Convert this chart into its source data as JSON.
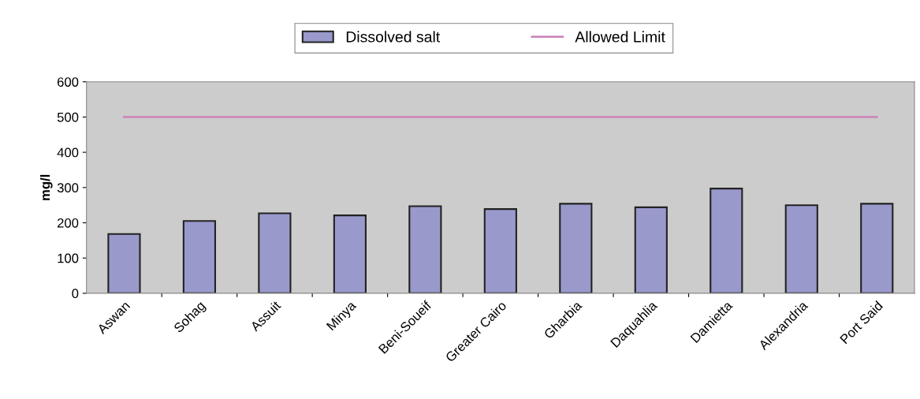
{
  "chart_data": {
    "type": "bar",
    "ylabel": "mg/l",
    "categories": [
      "Aswan",
      "Sohag",
      "Assuit",
      "Minya",
      "Beni-Soueif",
      "Greater Cairo",
      "Gharbia",
      "Daquahlia",
      "Damietta",
      "Alexandria",
      "Port Said"
    ],
    "series": [
      {
        "name": "Dissolved salt",
        "color": "#9999cc",
        "values": [
          168,
          205,
          227,
          221,
          247,
          239,
          254,
          244,
          297,
          250,
          254
        ]
      },
      {
        "name": "Allowed Limit",
        "type": "line",
        "color": "#cc88bb",
        "values": [
          500,
          500,
          500,
          500,
          500,
          500,
          500,
          500,
          500,
          500,
          500
        ]
      }
    ],
    "ylim": [
      0,
      600
    ],
    "yticks": [
      0,
      100,
      200,
      300,
      400,
      500,
      600
    ],
    "grid": false,
    "legend": "top",
    "marker": "none",
    "line_style": "solid"
  }
}
